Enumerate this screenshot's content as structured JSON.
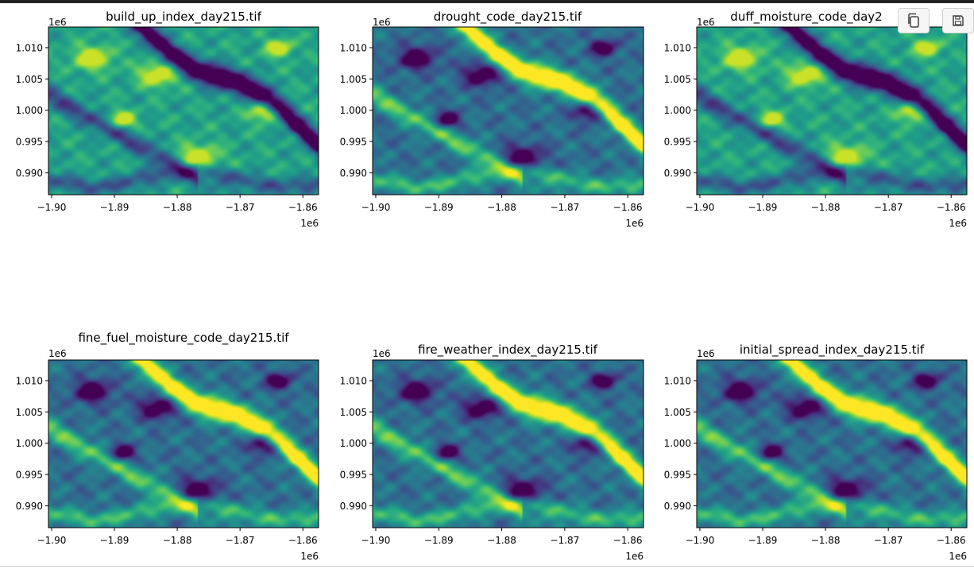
{
  "colormap": "viridis",
  "toolbar": {
    "copy_icon": "copy-icon",
    "save_icon": "save-icon"
  },
  "chart_data": [
    {
      "type": "heatmap",
      "title": "build_up_index_day215.tif",
      "x_ticks": [
        "−1.90",
        "−1.89",
        "−1.88",
        "−1.87",
        "−1.86"
      ],
      "y_ticks": [
        "1.010",
        "1.005",
        "1.000",
        "0.995",
        "0.990"
      ],
      "x_offset_label": "1e6",
      "y_offset_label": "1e6",
      "xlim": [
        -1.9005,
        -1.8575
      ],
      "ylim": [
        0.9865,
        1.0133
      ],
      "x_tick_values": [
        -1.9,
        -1.89,
        -1.88,
        -1.87,
        -1.86
      ],
      "y_tick_values": [
        1.01,
        1.005,
        1.0,
        0.995,
        0.99
      ],
      "pattern": "inverse"
    },
    {
      "type": "heatmap",
      "title": "drought_code_day215.tif",
      "x_ticks": [
        "−1.90",
        "−1.89",
        "−1.88",
        "−1.87",
        "−1.86"
      ],
      "y_ticks": [
        "1.010",
        "1.005",
        "1.000",
        "0.995",
        "0.990"
      ],
      "x_offset_label": "1e6",
      "y_offset_label": "1e6",
      "xlim": [
        -1.9005,
        -1.8575
      ],
      "ylim": [
        0.9865,
        1.0133
      ],
      "x_tick_values": [
        -1.9,
        -1.89,
        -1.88,
        -1.87,
        -1.86
      ],
      "y_tick_values": [
        1.01,
        1.005,
        1.0,
        0.995,
        0.99
      ],
      "pattern": "direct"
    },
    {
      "type": "heatmap",
      "title": "duff_moisture_code_day2",
      "x_ticks": [
        "−1.90",
        "−1.89",
        "−1.88",
        "−1.87",
        "−1.86"
      ],
      "y_ticks": [
        "1.010",
        "1.005",
        "1.000",
        "0.995",
        "0.990"
      ],
      "x_offset_label": "1e6",
      "y_offset_label": "1e6",
      "xlim": [
        -1.9005,
        -1.8575
      ],
      "ylim": [
        0.9865,
        1.0133
      ],
      "x_tick_values": [
        -1.9,
        -1.89,
        -1.88,
        -1.87,
        -1.86
      ],
      "y_tick_values": [
        1.01,
        1.005,
        1.0,
        0.995,
        0.99
      ],
      "pattern": "inverse"
    },
    {
      "type": "heatmap",
      "title": "fine_fuel_moisture_code_day215.tif",
      "x_ticks": [
        "−1.90",
        "−1.89",
        "−1.88",
        "−1.87",
        "−1.86"
      ],
      "y_ticks": [
        "1.010",
        "1.005",
        "1.000",
        "0.995",
        "0.990"
      ],
      "x_offset_label": "1e6",
      "y_offset_label": "1e6",
      "xlim": [
        -1.9005,
        -1.8575
      ],
      "ylim": [
        0.9865,
        1.0133
      ],
      "x_tick_values": [
        -1.9,
        -1.89,
        -1.88,
        -1.87,
        -1.86
      ],
      "y_tick_values": [
        1.01,
        1.005,
        1.0,
        0.995,
        0.99
      ],
      "pattern": "direct"
    },
    {
      "type": "heatmap",
      "title": "fire_weather_index_day215.tif",
      "x_ticks": [
        "−1.90",
        "−1.89",
        "−1.88",
        "−1.87",
        "−1.86"
      ],
      "y_ticks": [
        "1.010",
        "1.005",
        "1.000",
        "0.995",
        "0.990"
      ],
      "x_offset_label": "1e6",
      "y_offset_label": "1e6",
      "xlim": [
        -1.9005,
        -1.8575
      ],
      "ylim": [
        0.9865,
        1.0133
      ],
      "x_tick_values": [
        -1.9,
        -1.89,
        -1.88,
        -1.87,
        -1.86
      ],
      "y_tick_values": [
        1.01,
        1.005,
        1.0,
        0.995,
        0.99
      ],
      "pattern": "direct"
    },
    {
      "type": "heatmap",
      "title": "initial_spread_index_day215.tif",
      "x_ticks": [
        "−1.90",
        "−1.89",
        "−1.88",
        "−1.87",
        "−1.86"
      ],
      "y_ticks": [
        "1.010",
        "1.005",
        "1.000",
        "0.995",
        "0.990"
      ],
      "x_offset_label": "1e6",
      "y_offset_label": "1e6",
      "xlim": [
        -1.9005,
        -1.8575
      ],
      "ylim": [
        0.9865,
        1.0133
      ],
      "x_tick_values": [
        -1.9,
        -1.89,
        -1.88,
        -1.87,
        -1.86
      ],
      "y_tick_values": [
        1.01,
        1.005,
        1.0,
        0.995,
        0.99
      ],
      "pattern": "direct"
    }
  ]
}
